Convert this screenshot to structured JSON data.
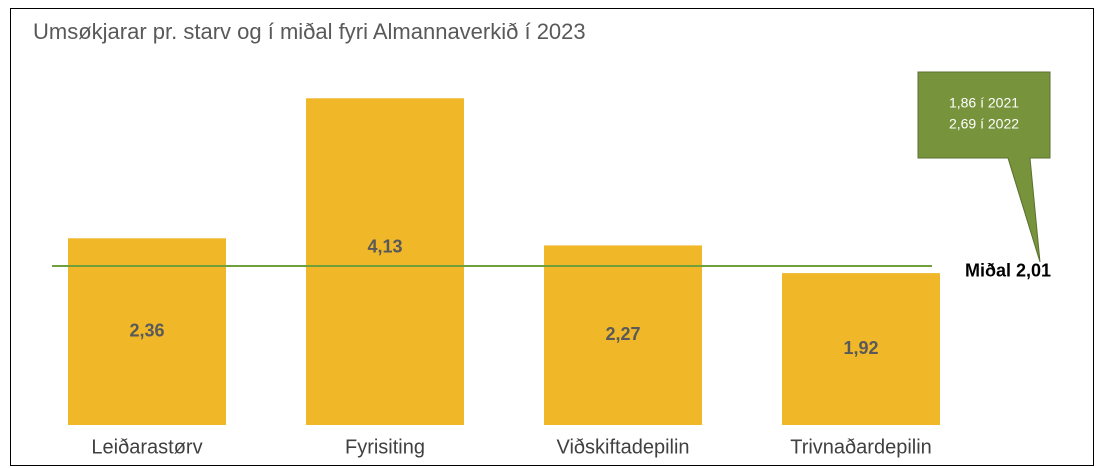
{
  "chart_data": {
    "type": "bar",
    "title": "Umsøkjarar pr. starv og í miðal fyri Almannaverkið í 2023",
    "categories": [
      "Leiðarastørv",
      "Fyrisiting",
      "Viðskiftadepilin",
      "Trivnaðardepilin"
    ],
    "values": [
      2.36,
      4.13,
      2.27,
      1.92
    ],
    "value_labels": [
      "2,36",
      "4,13",
      "2,27",
      "1,92"
    ],
    "color": "#f0b829",
    "ylim": [
      0,
      4.5
    ],
    "reference_line": {
      "label": "Miðal 2,01",
      "value": 2.01,
      "color": "#70a03c"
    },
    "annotation": {
      "lines": [
        "1,86 í 2021",
        "2,69 í 2022"
      ],
      "color": "#77933c"
    }
  }
}
